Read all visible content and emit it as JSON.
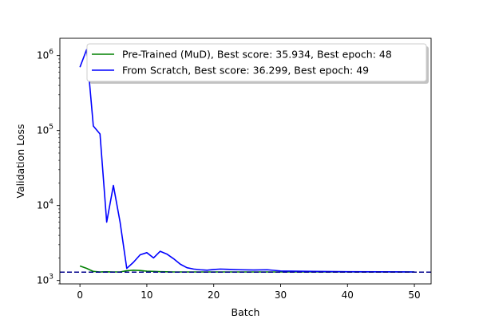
{
  "chart_data": {
    "type": "line",
    "title": "",
    "xlabel": "Batch",
    "ylabel": "Validation Loss",
    "yscale": "log",
    "xlim": [
      -3,
      52.5
    ],
    "ylim": [
      900,
      1700000
    ],
    "x_ticks": [
      0,
      10,
      20,
      30,
      40,
      50
    ],
    "y_ticks": [
      {
        "value": 1000,
        "base": "10",
        "exp": "3"
      },
      {
        "value": 10000,
        "base": "10",
        "exp": "4"
      },
      {
        "value": 100000,
        "base": "10",
        "exp": "5"
      },
      {
        "value": 1000000,
        "base": "10",
        "exp": "6"
      }
    ],
    "grid": false,
    "legend_position": "top-right",
    "reference_line": {
      "y": 1290,
      "style": "dashed",
      "color": "#00008b"
    },
    "series": [
      {
        "name": "Pre-Trained (MuD), Best score: 35.934, Best epoch: 48",
        "color": "#008000",
        "x": [
          0,
          1,
          2,
          3,
          4,
          5,
          6,
          7,
          8,
          9,
          10,
          11,
          12,
          13,
          14,
          15,
          16,
          17,
          18,
          19,
          20,
          22,
          24,
          26,
          28,
          30,
          35,
          40,
          45,
          50
        ],
        "y": [
          1560,
          1450,
          1320,
          1300,
          1305,
          1300,
          1300,
          1350,
          1370,
          1360,
          1330,
          1320,
          1310,
          1305,
          1300,
          1300,
          1300,
          1300,
          1300,
          1300,
          1300,
          1300,
          1300,
          1300,
          1300,
          1300,
          1300,
          1300,
          1300,
          1300
        ]
      },
      {
        "name": "From Scratch, Best score: 36.299, Best epoch: 49",
        "color": "#0000ff",
        "x": [
          0,
          1,
          2,
          3,
          4,
          5,
          6,
          7,
          8,
          9,
          10,
          11,
          12,
          13,
          14,
          15,
          16,
          17,
          18,
          19,
          20,
          21,
          22,
          24,
          26,
          28,
          30,
          35,
          40,
          45,
          50
        ],
        "y": [
          700000,
          1200000,
          115000,
          90000,
          6000,
          18500,
          6000,
          1450,
          1750,
          2200,
          2350,
          2000,
          2450,
          2250,
          1950,
          1650,
          1480,
          1420,
          1390,
          1370,
          1400,
          1420,
          1410,
          1390,
          1380,
          1390,
          1340,
          1320,
          1310,
          1305,
          1300
        ]
      }
    ]
  }
}
